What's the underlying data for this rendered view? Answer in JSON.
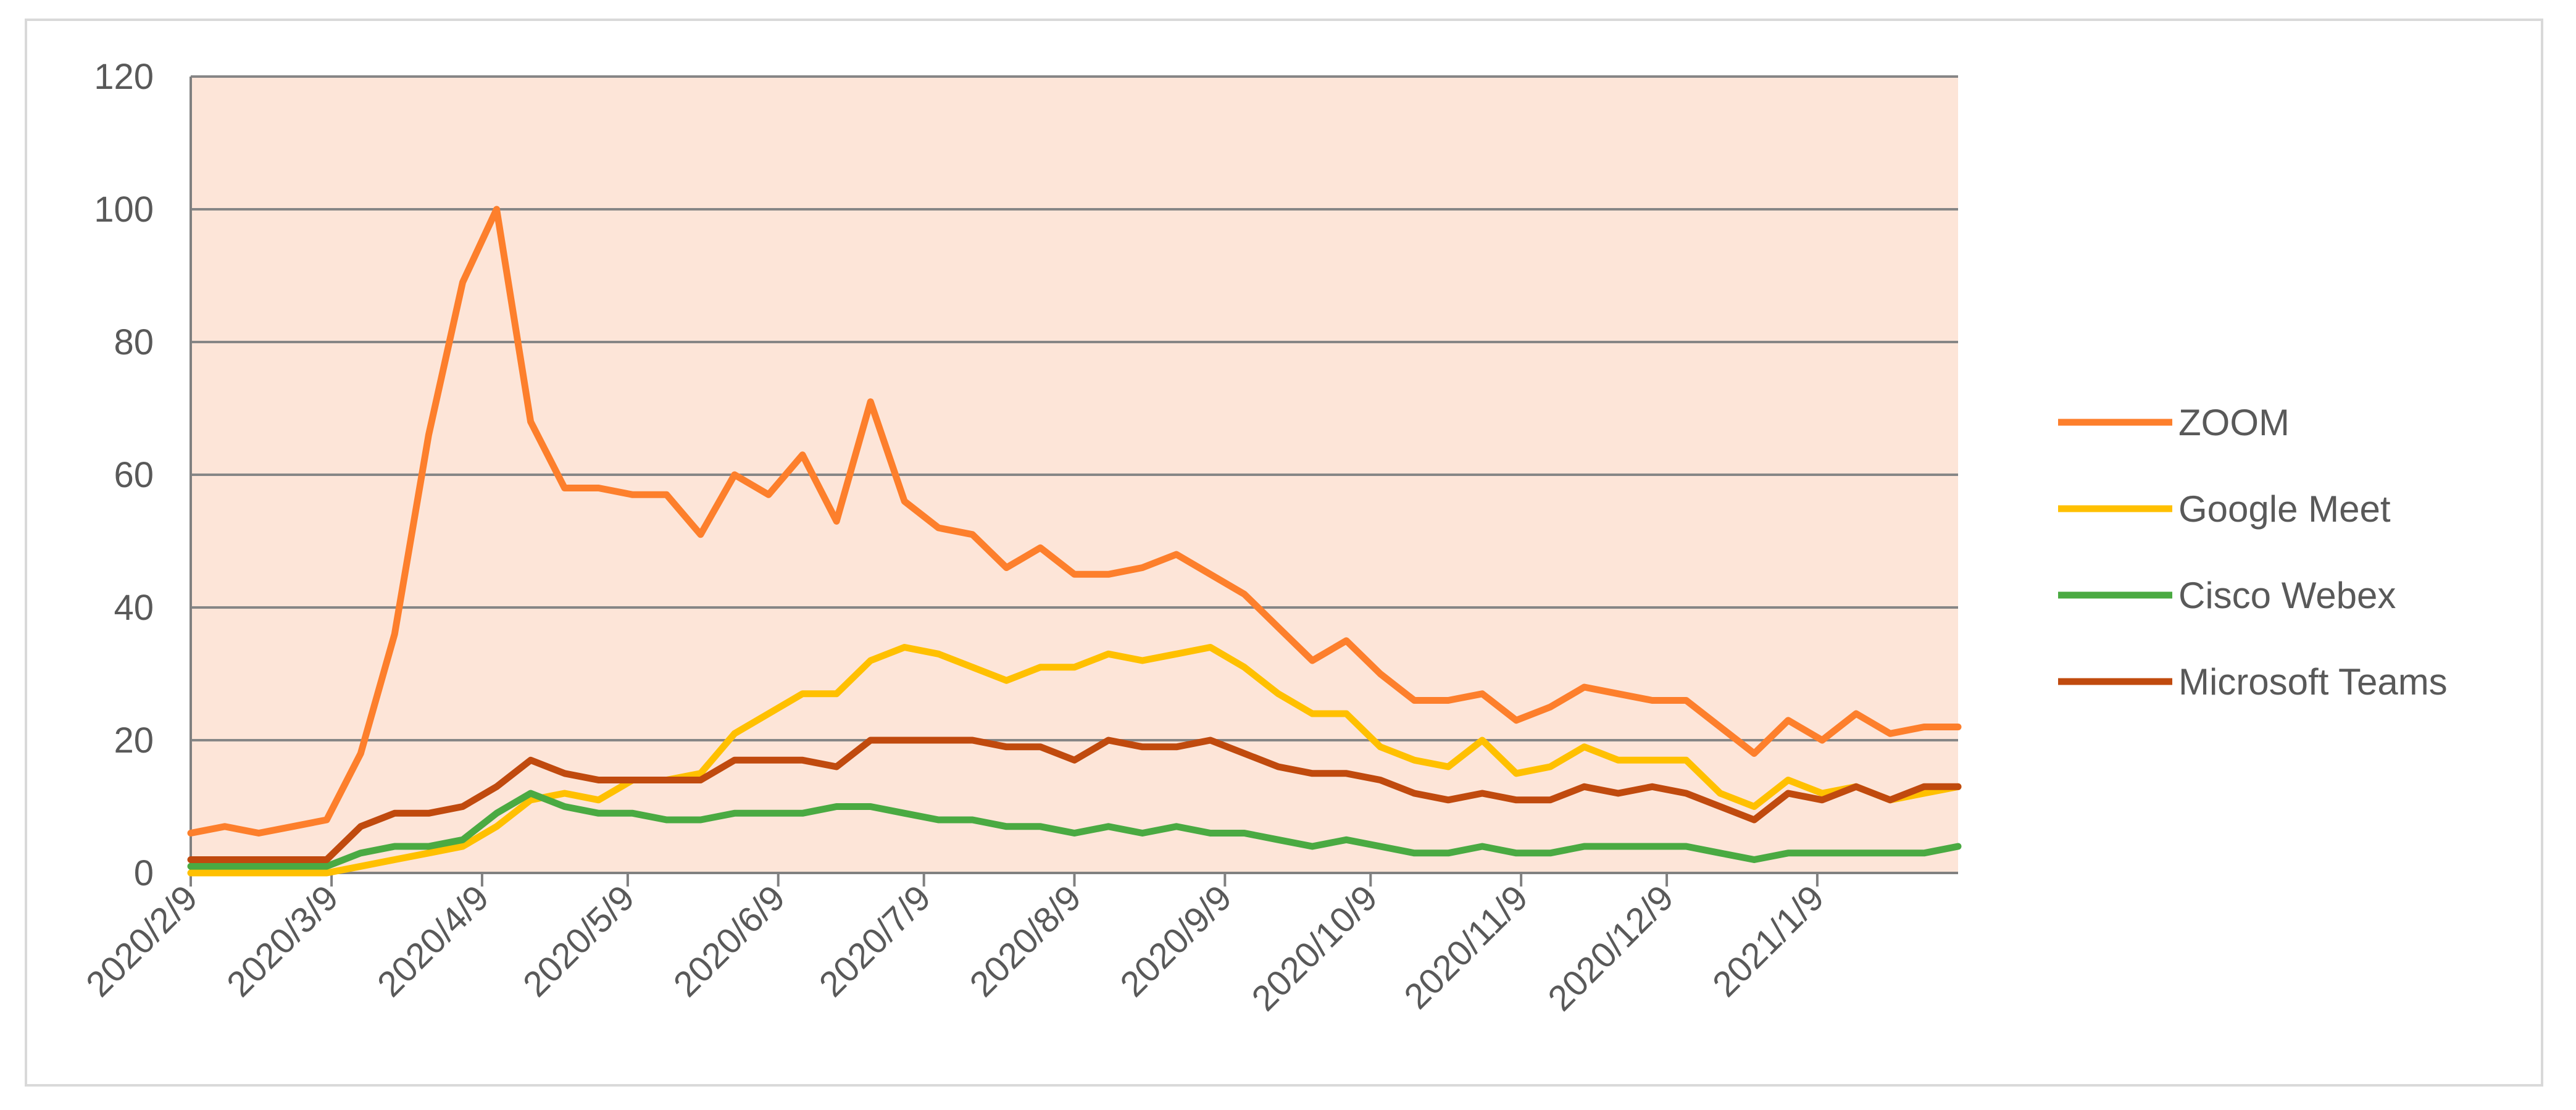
{
  "chart_data": {
    "type": "line",
    "title": "",
    "xlabel": "",
    "ylabel": "",
    "ylim": [
      0,
      120
    ],
    "yticks": [
      "0",
      "20",
      "40",
      "60",
      "80",
      "100",
      "120"
    ],
    "grid": true,
    "legend_position": "right",
    "plot_background": "#fde5d8",
    "x_tick_labels": [
      "2020/2/9",
      "2020/3/9",
      "2020/4/9",
      "2020/5/9",
      "2020/6/9",
      "2020/7/9",
      "2020/8/9",
      "2020/9/9",
      "2020/10/9",
      "2020/11/9",
      "2020/12/9",
      "2021/1/9"
    ],
    "x": [
      "2020/2/9",
      "2020/2/16",
      "2020/2/23",
      "2020/3/1",
      "2020/3/8",
      "2020/3/15",
      "2020/3/22",
      "2020/3/29",
      "2020/4/5",
      "2020/4/12",
      "2020/4/19",
      "2020/4/26",
      "2020/5/3",
      "2020/5/10",
      "2020/5/17",
      "2020/5/24",
      "2020/5/31",
      "2020/6/7",
      "2020/6/14",
      "2020/6/21",
      "2020/6/28",
      "2020/7/5",
      "2020/7/12",
      "2020/7/19",
      "2020/7/26",
      "2020/8/2",
      "2020/8/9",
      "2020/8/16",
      "2020/8/23",
      "2020/8/30",
      "2020/9/6",
      "2020/9/13",
      "2020/9/20",
      "2020/9/27",
      "2020/10/4",
      "2020/10/11",
      "2020/10/18",
      "2020/10/25",
      "2020/11/1",
      "2020/11/8",
      "2020/11/15",
      "2020/11/22",
      "2020/11/29",
      "2020/12/6",
      "2020/12/13",
      "2020/12/20",
      "2020/12/27",
      "2021/1/3",
      "2021/1/10",
      "2021/1/17",
      "2021/1/24",
      "2021/1/31",
      "2021/2/7"
    ],
    "series": [
      {
        "name": "ZOOM",
        "color": "#fd7f2c",
        "values": [
          6,
          7,
          6,
          7,
          8,
          18,
          36,
          66,
          89,
          100,
          68,
          58,
          58,
          57,
          57,
          51,
          60,
          57,
          63,
          53,
          71,
          56,
          52,
          51,
          46,
          49,
          45,
          45,
          46,
          48,
          45,
          42,
          37,
          32,
          35,
          30,
          26,
          26,
          27,
          23,
          25,
          28,
          27,
          26,
          26,
          22,
          18,
          23,
          20,
          24,
          21,
          22,
          22
        ]
      },
      {
        "name": "Google Meet",
        "color": "#ffc000",
        "values": [
          0,
          0,
          0,
          0,
          0,
          1,
          2,
          3,
          4,
          7,
          11,
          12,
          11,
          14,
          14,
          15,
          21,
          24,
          27,
          27,
          32,
          34,
          33,
          31,
          29,
          31,
          31,
          33,
          32,
          33,
          34,
          31,
          27,
          24,
          24,
          19,
          17,
          16,
          20,
          15,
          16,
          19,
          17,
          17,
          17,
          12,
          10,
          14,
          12,
          13,
          11,
          12,
          13
        ]
      },
      {
        "name": "Cisco Webex",
        "color": "#4aaa42",
        "values": [
          1,
          1,
          1,
          1,
          1,
          3,
          4,
          4,
          5,
          9,
          12,
          10,
          9,
          9,
          8,
          8,
          9,
          9,
          9,
          10,
          10,
          9,
          8,
          8,
          7,
          7,
          6,
          7,
          6,
          7,
          6,
          6,
          5,
          4,
          5,
          4,
          3,
          3,
          4,
          3,
          3,
          4,
          4,
          4,
          4,
          3,
          2,
          3,
          3,
          3,
          3,
          3,
          4
        ]
      },
      {
        "name": "Microsoft Teams",
        "color": "#c04a0e",
        "values": [
          2,
          2,
          2,
          2,
          2,
          7,
          9,
          9,
          10,
          13,
          17,
          15,
          14,
          14,
          14,
          14,
          17,
          17,
          17,
          16,
          20,
          20,
          20,
          20,
          19,
          19,
          17,
          20,
          19,
          19,
          20,
          18,
          16,
          15,
          15,
          14,
          12,
          11,
          12,
          11,
          11,
          13,
          12,
          13,
          12,
          10,
          8,
          12,
          11,
          13,
          11,
          13,
          13
        ]
      }
    ]
  }
}
